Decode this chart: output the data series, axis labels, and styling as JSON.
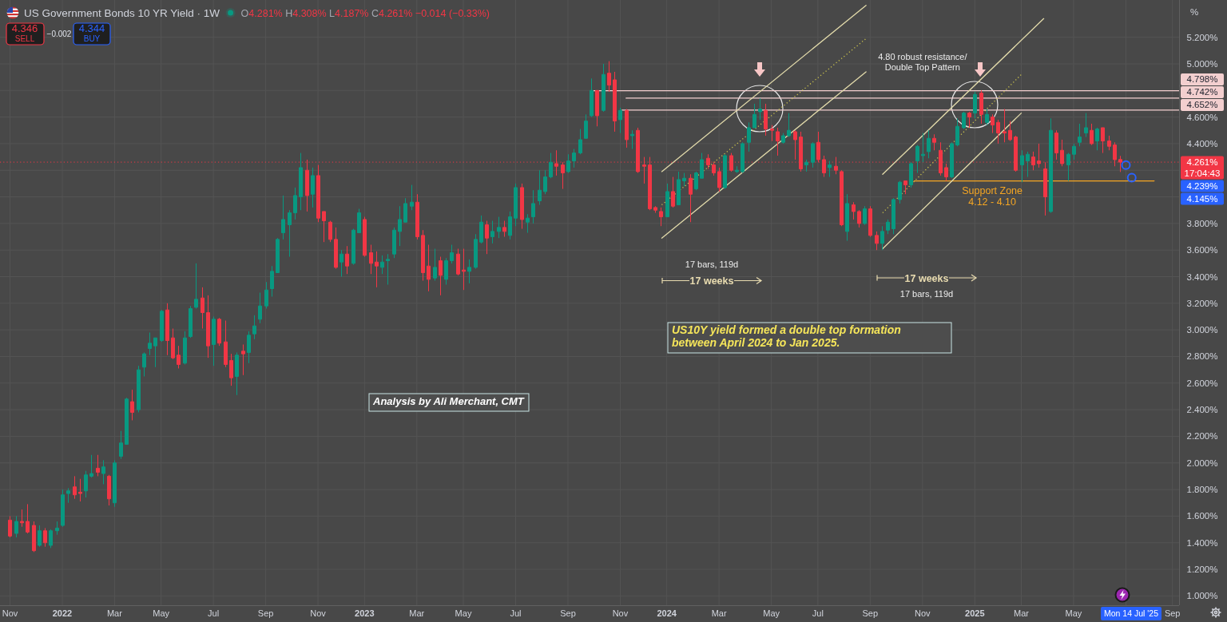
{
  "chart_data": {
    "type": "candlestick",
    "title": "US Government Bonds 10 YR Yield · 1W",
    "subtitle": "O4.281% H4.308% L4.187% C4.261% −0.014 (−0.33%)",
    "ylabel": "%",
    "xlim": [
      "2021-10-20",
      "2025-09-09"
    ],
    "ylim": [
      0.93,
      5.48
    ],
    "xticks": [
      {
        "value": "2021-11-01",
        "label": "Nov"
      },
      {
        "value": "2022-01-03",
        "label": "2022"
      },
      {
        "value": "2022-03-07",
        "label": "Mar"
      },
      {
        "value": "2022-05-02",
        "label": "May"
      },
      {
        "value": "2022-07-04",
        "label": "Jul"
      },
      {
        "value": "2022-09-05",
        "label": "Sep"
      },
      {
        "value": "2022-11-07",
        "label": "Nov"
      },
      {
        "value": "2023-01-02",
        "label": "2023"
      },
      {
        "value": "2023-03-06",
        "label": "Mar"
      },
      {
        "value": "2023-05-01",
        "label": "May"
      },
      {
        "value": "2023-07-03",
        "label": "Jul"
      },
      {
        "value": "2023-09-04",
        "label": "Sep"
      },
      {
        "value": "2023-11-06",
        "label": "Nov"
      },
      {
        "value": "2024-01-01",
        "label": "2024"
      },
      {
        "value": "2024-03-04",
        "label": "Mar"
      },
      {
        "value": "2024-05-06",
        "label": "May"
      },
      {
        "value": "2024-07-01",
        "label": "Jul"
      },
      {
        "value": "2024-09-02",
        "label": "Sep"
      },
      {
        "value": "2024-11-04",
        "label": "Nov"
      },
      {
        "value": "2025-01-06",
        "label": "2025"
      },
      {
        "value": "2025-03-03",
        "label": "Mar"
      },
      {
        "value": "2025-05-05",
        "label": "May"
      },
      {
        "value": "2025-07-07",
        "label": null
      },
      {
        "value": "2025-09-01",
        "label": "Sep"
      }
    ],
    "yticks": [
      {
        "value": 1,
        "label": "1.000%"
      },
      {
        "value": 1.2,
        "label": "1.200%"
      },
      {
        "value": 1.4,
        "label": "1.400%"
      },
      {
        "value": 1.6,
        "label": "1.600%"
      },
      {
        "value": 1.8,
        "label": "1.800%"
      },
      {
        "value": 2,
        "label": "2.000%"
      },
      {
        "value": 2.2,
        "label": "2.200%"
      },
      {
        "value": 2.4,
        "label": "2.400%"
      },
      {
        "value": 2.6,
        "label": "2.600%"
      },
      {
        "value": 2.8,
        "label": "2.800%"
      },
      {
        "value": 3,
        "label": "3.000%"
      },
      {
        "value": 3.2,
        "label": "3.200%"
      },
      {
        "value": 3.4,
        "label": "3.400%"
      },
      {
        "value": 3.6,
        "label": "3.600%"
      },
      {
        "value": 3.8,
        "label": "3.800%"
      },
      {
        "value": 4,
        "label": null
      },
      {
        "value": 4.2,
        "label": null
      },
      {
        "value": 4.4,
        "label": "4.400%"
      },
      {
        "value": 4.6,
        "label": "4.600%"
      },
      {
        "value": 4.8,
        "label": null
      },
      {
        "value": 5,
        "label": "5.000%"
      },
      {
        "value": 5.2,
        "label": "5.200%"
      }
    ],
    "grid": true,
    "x": [
      "2021-11-01",
      "2021-11-08",
      "2021-11-15",
      "2021-11-22",
      "2021-11-29",
      "2021-12-06",
      "2021-12-13",
      "2021-12-20",
      "2021-12-27",
      "2022-01-03",
      "2022-01-10",
      "2022-01-17",
      "2022-01-24",
      "2022-01-31",
      "2022-02-07",
      "2022-02-14",
      "2022-02-21",
      "2022-02-28",
      "2022-03-07",
      "2022-03-14",
      "2022-03-21",
      "2022-03-28",
      "2022-04-04",
      "2022-04-11",
      "2022-04-18",
      "2022-04-25",
      "2022-05-02",
      "2022-05-09",
      "2022-05-16",
      "2022-05-23",
      "2022-05-30",
      "2022-06-06",
      "2022-06-13",
      "2022-06-20",
      "2022-06-27",
      "2022-07-04",
      "2022-07-11",
      "2022-07-18",
      "2022-07-25",
      "2022-08-01",
      "2022-08-08",
      "2022-08-15",
      "2022-08-22",
      "2022-08-29",
      "2022-09-05",
      "2022-09-12",
      "2022-09-19",
      "2022-09-26",
      "2022-10-03",
      "2022-10-10",
      "2022-10-17",
      "2022-10-24",
      "2022-10-31",
      "2022-11-07",
      "2022-11-14",
      "2022-11-21",
      "2022-11-28",
      "2022-12-05",
      "2022-12-12",
      "2022-12-19",
      "2022-12-26",
      "2023-01-02",
      "2023-01-09",
      "2023-01-16",
      "2023-01-23",
      "2023-01-30",
      "2023-02-06",
      "2023-02-13",
      "2023-02-20",
      "2023-02-27",
      "2023-03-06",
      "2023-03-13",
      "2023-03-20",
      "2023-03-27",
      "2023-04-03",
      "2023-04-10",
      "2023-04-17",
      "2023-04-24",
      "2023-05-01",
      "2023-05-08",
      "2023-05-15",
      "2023-05-22",
      "2023-05-29",
      "2023-06-05",
      "2023-06-12",
      "2023-06-19",
      "2023-06-26",
      "2023-07-03",
      "2023-07-10",
      "2023-07-17",
      "2023-07-24",
      "2023-07-31",
      "2023-08-07",
      "2023-08-14",
      "2023-08-21",
      "2023-08-28",
      "2023-09-04",
      "2023-09-11",
      "2023-09-18",
      "2023-09-25",
      "2023-10-02",
      "2023-10-09",
      "2023-10-16",
      "2023-10-23",
      "2023-10-30",
      "2023-11-06",
      "2023-11-13",
      "2023-11-20",
      "2023-11-27",
      "2023-12-04",
      "2023-12-11",
      "2023-12-18",
      "2023-12-25",
      "2024-01-01",
      "2024-01-08",
      "2024-01-15",
      "2024-01-22",
      "2024-01-29",
      "2024-02-05",
      "2024-02-12",
      "2024-02-19",
      "2024-02-26",
      "2024-03-04",
      "2024-03-11",
      "2024-03-18",
      "2024-03-25",
      "2024-04-01",
      "2024-04-08",
      "2024-04-15",
      "2024-04-22",
      "2024-04-29",
      "2024-05-06",
      "2024-05-13",
      "2024-05-20",
      "2024-05-27",
      "2024-06-03",
      "2024-06-10",
      "2024-06-17",
      "2024-06-24",
      "2024-07-01",
      "2024-07-08",
      "2024-07-15",
      "2024-07-22",
      "2024-07-29",
      "2024-08-05",
      "2024-08-12",
      "2024-08-19",
      "2024-08-26",
      "2024-09-02",
      "2024-09-09",
      "2024-09-16",
      "2024-09-23",
      "2024-09-30",
      "2024-10-07",
      "2024-10-14",
      "2024-10-21",
      "2024-10-28",
      "2024-11-04",
      "2024-11-11",
      "2024-11-18",
      "2024-11-25",
      "2024-12-02",
      "2024-12-09",
      "2024-12-16",
      "2024-12-23",
      "2024-12-30",
      "2025-01-06",
      "2025-01-13",
      "2025-01-20",
      "2025-01-27",
      "2025-02-03",
      "2025-02-10",
      "2025-02-17",
      "2025-02-24",
      "2025-03-03",
      "2025-03-10",
      "2025-03-17",
      "2025-03-24",
      "2025-03-31",
      "2025-04-07",
      "2025-04-14",
      "2025-04-21",
      "2025-04-28",
      "2025-05-05",
      "2025-05-12",
      "2025-05-19",
      "2025-05-26",
      "2025-06-02",
      "2025-06-09",
      "2025-06-16",
      "2025-06-23",
      "2025-06-30"
    ],
    "ohlc": [
      [
        1.57,
        1.6,
        1.44,
        1.45
      ],
      [
        1.47,
        1.6,
        1.44,
        1.56
      ],
      [
        1.56,
        1.65,
        1.52,
        1.55
      ],
      [
        1.56,
        1.69,
        1.47,
        1.48
      ],
      [
        1.53,
        1.56,
        1.33,
        1.34
      ],
      [
        1.38,
        1.53,
        1.37,
        1.49
      ],
      [
        1.49,
        1.51,
        1.37,
        1.4
      ],
      [
        1.38,
        1.5,
        1.36,
        1.49
      ],
      [
        1.49,
        1.56,
        1.46,
        1.51
      ],
      [
        1.53,
        1.8,
        1.52,
        1.76
      ],
      [
        1.77,
        1.81,
        1.7,
        1.79
      ],
      [
        1.82,
        1.9,
        1.73,
        1.76
      ],
      [
        1.78,
        1.88,
        1.71,
        1.77
      ],
      [
        1.79,
        1.94,
        1.74,
        1.91
      ],
      [
        1.9,
        2.06,
        1.89,
        1.92
      ],
      [
        1.96,
        2.06,
        1.9,
        1.93
      ],
      [
        1.92,
        2.02,
        1.84,
        1.97
      ],
      [
        1.9,
        1.91,
        1.68,
        1.73
      ],
      [
        1.7,
        2.02,
        1.67,
        2.0
      ],
      [
        2.05,
        2.24,
        2.03,
        2.15
      ],
      [
        2.14,
        2.49,
        2.14,
        2.48
      ],
      [
        2.46,
        2.55,
        2.32,
        2.38
      ],
      [
        2.4,
        2.73,
        2.38,
        2.7
      ],
      [
        2.72,
        2.83,
        2.65,
        2.82
      ],
      [
        2.86,
        2.98,
        2.81,
        2.9
      ],
      [
        2.88,
        2.94,
        2.72,
        2.94
      ],
      [
        2.92,
        3.15,
        2.91,
        3.14
      ],
      [
        3.15,
        3.2,
        2.81,
        2.92
      ],
      [
        2.94,
        3.01,
        2.78,
        2.79
      ],
      [
        2.81,
        2.88,
        2.71,
        2.74
      ],
      [
        2.75,
        2.99,
        2.74,
        2.94
      ],
      [
        2.95,
        3.18,
        2.94,
        3.16
      ],
      [
        3.17,
        3.5,
        3.16,
        3.23
      ],
      [
        3.24,
        3.32,
        3.01,
        3.13
      ],
      [
        3.13,
        3.26,
        2.79,
        2.88
      ],
      [
        2.89,
        3.1,
        2.73,
        3.08
      ],
      [
        3.08,
        3.09,
        2.88,
        2.9
      ],
      [
        2.91,
        3.07,
        2.72,
        2.74
      ],
      [
        2.77,
        2.82,
        2.58,
        2.64
      ],
      [
        2.65,
        2.83,
        2.51,
        2.81
      ],
      [
        2.84,
        2.89,
        2.66,
        2.82
      ],
      [
        2.83,
        2.99,
        2.75,
        2.96
      ],
      [
        2.97,
        3.11,
        2.93,
        3.03
      ],
      [
        3.08,
        3.28,
        3.05,
        3.18
      ],
      [
        3.18,
        3.36,
        3.16,
        3.3
      ],
      [
        3.31,
        3.48,
        3.25,
        3.44
      ],
      [
        3.43,
        3.69,
        3.43,
        3.68
      ],
      [
        3.73,
        4.01,
        3.68,
        3.83
      ],
      [
        3.79,
        3.9,
        3.55,
        3.88
      ],
      [
        3.88,
        4.07,
        3.83,
        4.01
      ],
      [
        4.0,
        4.33,
        3.9,
        4.22
      ],
      [
        4.2,
        4.28,
        3.89,
        4.01
      ],
      [
        4.02,
        4.22,
        3.92,
        4.16
      ],
      [
        4.16,
        4.24,
        3.81,
        3.84
      ],
      [
        3.89,
        3.89,
        3.66,
        3.82
      ],
      [
        3.81,
        3.82,
        3.66,
        3.68
      ],
      [
        3.68,
        3.77,
        3.46,
        3.47
      ],
      [
        3.51,
        3.6,
        3.4,
        3.57
      ],
      [
        3.57,
        3.63,
        3.42,
        3.48
      ],
      [
        3.5,
        3.76,
        3.49,
        3.75
      ],
      [
        3.73,
        3.91,
        3.73,
        3.88
      ],
      [
        3.83,
        3.85,
        3.55,
        3.56
      ],
      [
        3.58,
        3.64,
        3.42,
        3.5
      ],
      [
        3.51,
        3.59,
        3.32,
        3.48
      ],
      [
        3.47,
        3.56,
        3.42,
        3.51
      ],
      [
        3.52,
        3.57,
        3.34,
        3.53
      ],
      [
        3.57,
        3.77,
        3.54,
        3.75
      ],
      [
        3.74,
        3.93,
        3.63,
        3.83
      ],
      [
        3.81,
        3.99,
        3.81,
        3.95
      ],
      [
        3.93,
        4.09,
        3.9,
        3.96
      ],
      [
        3.96,
        4.02,
        3.68,
        3.7
      ],
      [
        3.71,
        3.75,
        3.37,
        3.43
      ],
      [
        3.48,
        3.64,
        3.29,
        3.38
      ],
      [
        3.39,
        3.61,
        3.37,
        3.47
      ],
      [
        3.52,
        3.55,
        3.26,
        3.41
      ],
      [
        3.38,
        3.54,
        3.34,
        3.52
      ],
      [
        3.52,
        3.64,
        3.5,
        3.58
      ],
      [
        3.57,
        3.61,
        3.41,
        3.42
      ],
      [
        3.45,
        3.61,
        3.3,
        3.44
      ],
      [
        3.44,
        3.53,
        3.35,
        3.47
      ],
      [
        3.47,
        3.72,
        3.46,
        3.68
      ],
      [
        3.66,
        3.86,
        3.65,
        3.81
      ],
      [
        3.79,
        3.82,
        3.57,
        3.69
      ],
      [
        3.7,
        3.82,
        3.65,
        3.74
      ],
      [
        3.74,
        3.85,
        3.69,
        3.77
      ],
      [
        3.77,
        3.82,
        3.7,
        3.74
      ],
      [
        3.71,
        3.89,
        3.68,
        3.85
      ],
      [
        3.84,
        4.1,
        3.78,
        4.07
      ],
      [
        4.07,
        4.1,
        3.76,
        3.83
      ],
      [
        3.81,
        3.87,
        3.73,
        3.84
      ],
      [
        3.85,
        4.05,
        3.8,
        3.95
      ],
      [
        3.97,
        4.2,
        3.94,
        4.05
      ],
      [
        4.04,
        4.2,
        4.02,
        4.15
      ],
      [
        4.15,
        4.33,
        4.14,
        4.26
      ],
      [
        4.25,
        4.35,
        4.16,
        4.23
      ],
      [
        4.24,
        4.26,
        4.06,
        4.18
      ],
      [
        4.19,
        4.32,
        4.18,
        4.27
      ],
      [
        4.27,
        4.36,
        4.22,
        4.33
      ],
      [
        4.33,
        4.51,
        4.32,
        4.43
      ],
      [
        4.44,
        4.62,
        4.44,
        4.57
      ],
      [
        4.61,
        4.89,
        4.6,
        4.8
      ],
      [
        4.8,
        4.8,
        4.53,
        4.61
      ],
      [
        4.65,
        5.0,
        4.64,
        4.92
      ],
      [
        4.93,
        5.02,
        4.79,
        4.84
      ],
      [
        4.88,
        4.94,
        4.49,
        4.57
      ],
      [
        4.58,
        4.67,
        4.48,
        4.65
      ],
      [
        4.65,
        4.66,
        4.37,
        4.43
      ],
      [
        4.46,
        4.5,
        4.36,
        4.47
      ],
      [
        4.5,
        4.52,
        4.18,
        4.19
      ],
      [
        4.24,
        4.3,
        4.1,
        4.23
      ],
      [
        4.24,
        4.3,
        3.9,
        3.91
      ],
      [
        3.92,
        3.93,
        3.88,
        3.9
      ],
      [
        3.89,
        3.92,
        3.78,
        3.85
      ],
      [
        3.85,
        4.1,
        3.85,
        4.04
      ],
      [
        4.04,
        4.15,
        3.92,
        3.93
      ],
      [
        3.94,
        4.19,
        3.94,
        4.13
      ],
      [
        4.12,
        4.18,
        4.08,
        4.14
      ],
      [
        4.14,
        4.17,
        3.81,
        4.02
      ],
      [
        4.06,
        4.19,
        4.05,
        4.18
      ],
      [
        4.14,
        4.33,
        4.14,
        4.28
      ],
      [
        4.29,
        4.32,
        4.21,
        4.24
      ],
      [
        4.24,
        4.26,
        4.16,
        4.18
      ],
      [
        4.19,
        4.22,
        4.04,
        4.07
      ],
      [
        4.07,
        4.32,
        4.06,
        4.31
      ],
      [
        4.31,
        4.33,
        4.19,
        4.2
      ],
      [
        4.19,
        4.23,
        4.18,
        4.2
      ],
      [
        4.19,
        4.41,
        4.18,
        4.4
      ],
      [
        4.41,
        4.56,
        4.34,
        4.52
      ],
      [
        4.52,
        4.7,
        4.52,
        4.62
      ],
      [
        4.64,
        4.74,
        4.58,
        4.66
      ],
      [
        4.65,
        4.7,
        4.46,
        4.51
      ],
      [
        4.51,
        4.54,
        4.42,
        4.5
      ],
      [
        4.49,
        4.52,
        4.31,
        4.42
      ],
      [
        4.41,
        4.48,
        4.4,
        4.46
      ],
      [
        4.46,
        4.63,
        4.45,
        4.5
      ],
      [
        4.49,
        4.5,
        4.28,
        4.43
      ],
      [
        4.45,
        4.49,
        4.19,
        4.21
      ],
      [
        4.24,
        4.28,
        4.19,
        4.26
      ],
      [
        4.26,
        4.41,
        4.22,
        4.4
      ],
      [
        4.41,
        4.49,
        4.26,
        4.28
      ],
      [
        4.28,
        4.31,
        4.15,
        4.18
      ],
      [
        4.22,
        4.27,
        4.15,
        4.24
      ],
      [
        4.23,
        4.3,
        4.17,
        4.2
      ],
      [
        4.19,
        4.2,
        3.78,
        3.79
      ],
      [
        3.74,
        4.02,
        3.67,
        3.95
      ],
      [
        3.94,
        3.96,
        3.83,
        3.89
      ],
      [
        3.89,
        3.9,
        3.77,
        3.8
      ],
      [
        3.8,
        3.93,
        3.79,
        3.91
      ],
      [
        3.91,
        3.93,
        3.7,
        3.71
      ],
      [
        3.71,
        3.74,
        3.6,
        3.65
      ],
      [
        3.65,
        3.78,
        3.6,
        3.74
      ],
      [
        3.75,
        3.83,
        3.72,
        3.81
      ],
      [
        3.76,
        3.99,
        3.72,
        3.98
      ],
      [
        3.98,
        4.12,
        3.95,
        4.11
      ],
      [
        4.12,
        4.12,
        4.02,
        4.09
      ],
      [
        4.09,
        4.26,
        4.07,
        4.25
      ],
      [
        4.27,
        4.39,
        4.18,
        4.38
      ],
      [
        4.31,
        4.48,
        4.26,
        4.32
      ],
      [
        4.34,
        4.5,
        4.29,
        4.44
      ],
      [
        4.44,
        4.47,
        4.35,
        4.41
      ],
      [
        4.35,
        4.41,
        4.16,
        4.18
      ],
      [
        4.22,
        4.25,
        4.12,
        4.15
      ],
      [
        4.15,
        4.41,
        4.14,
        4.4
      ],
      [
        4.39,
        4.59,
        4.38,
        4.53
      ],
      [
        4.52,
        4.64,
        4.51,
        4.63
      ],
      [
        4.63,
        4.64,
        4.52,
        4.6
      ],
      [
        4.63,
        4.79,
        4.59,
        4.77
      ],
      [
        4.78,
        4.8,
        4.55,
        4.62
      ],
      [
        4.56,
        4.66,
        4.54,
        4.62
      ],
      [
        4.6,
        4.62,
        4.48,
        4.54
      ],
      [
        4.56,
        4.58,
        4.4,
        4.48
      ],
      [
        4.49,
        4.66,
        4.41,
        4.48
      ],
      [
        4.5,
        4.57,
        4.42,
        4.43
      ],
      [
        4.45,
        4.46,
        4.19,
        4.2
      ],
      [
        4.24,
        4.35,
        4.11,
        4.31
      ],
      [
        4.27,
        4.34,
        4.15,
        4.32
      ],
      [
        4.3,
        4.34,
        4.2,
        4.24
      ],
      [
        4.27,
        4.4,
        4.22,
        4.25
      ],
      [
        4.21,
        4.26,
        3.86,
        4.0
      ],
      [
        3.89,
        4.59,
        3.88,
        4.5
      ],
      [
        4.48,
        4.5,
        4.28,
        4.33
      ],
      [
        4.35,
        4.43,
        4.23,
        4.25
      ],
      [
        4.24,
        4.33,
        4.12,
        4.32
      ],
      [
        4.32,
        4.4,
        4.28,
        4.38
      ],
      [
        4.41,
        4.55,
        4.38,
        4.45
      ],
      [
        4.48,
        4.63,
        4.45,
        4.52
      ],
      [
        4.5,
        4.55,
        4.39,
        4.4
      ],
      [
        4.42,
        4.52,
        4.35,
        4.51
      ],
      [
        4.52,
        4.52,
        4.33,
        4.42
      ],
      [
        4.42,
        4.46,
        4.35,
        4.38
      ],
      [
        4.39,
        4.41,
        4.23,
        4.28
      ],
      [
        4.281,
        4.308,
        4.187,
        4.261
      ]
    ],
    "colors": [
      "#f23645",
      "#089981",
      "#f23645",
      "#f23645",
      "#f23645",
      "#089981",
      "#f23645",
      "#089981",
      "#089981",
      "#089981",
      "#089981",
      "#f23645",
      "#f23645",
      "#089981",
      "#089981",
      "#f23645",
      "#089981",
      "#f23645",
      "#089981",
      "#089981",
      "#089981",
      "#f23645",
      "#089981",
      "#089981",
      "#089981",
      "#089981",
      "#089981",
      "#f23645",
      "#f23645",
      "#f23645",
      "#089981",
      "#089981",
      "#089981",
      "#f23645",
      "#f23645",
      "#089981",
      "#f23645",
      "#f23645",
      "#f23645",
      "#089981",
      "#f23645",
      "#089981",
      "#089981",
      "#089981",
      "#089981",
      "#089981",
      "#089981",
      "#089981",
      "#089981",
      "#089981",
      "#089981",
      "#f23645",
      "#089981",
      "#f23645",
      "#f23645",
      "#f23645",
      "#f23645",
      "#089981",
      "#f23645",
      "#089981",
      "#089981",
      "#f23645",
      "#f23645",
      "#f23645",
      "#089981",
      "#089981",
      "#089981",
      "#089981",
      "#089981",
      "#089981",
      "#f23645",
      "#f23645",
      "#f23645",
      "#089981",
      "#f23645",
      "#089981",
      "#089981",
      "#f23645",
      "#f23645",
      "#089981",
      "#089981",
      "#089981",
      "#f23645",
      "#089981",
      "#089981",
      "#f23645",
      "#089981",
      "#089981",
      "#f23645",
      "#089981",
      "#089981",
      "#089981",
      "#089981",
      "#089981",
      "#f23645",
      "#f23645",
      "#089981",
      "#089981",
      "#089981",
      "#089981",
      "#089981",
      "#f23645",
      "#089981",
      "#f23645",
      "#f23645",
      "#089981",
      "#f23645",
      "#089981",
      "#f23645",
      "#f23645",
      "#f23645",
      "#f23645",
      "#f23645",
      "#089981",
      "#f23645",
      "#089981",
      "#089981",
      "#f23645",
      "#089981",
      "#089981",
      "#f23645",
      "#f23645",
      "#f23645",
      "#089981",
      "#f23645",
      "#089981",
      "#089981",
      "#089981",
      "#089981",
      "#089981",
      "#f23645",
      "#f23645",
      "#f23645",
      "#089981",
      "#089981",
      "#f23645",
      "#f23645",
      "#089981",
      "#089981",
      "#f23645",
      "#f23645",
      "#089981",
      "#f23645",
      "#f23645",
      "#089981",
      "#f23645",
      "#f23645",
      "#089981",
      "#f23645",
      "#f23645",
      "#089981",
      "#089981",
      "#089981",
      "#089981",
      "#f23645",
      "#089981",
      "#089981",
      "#089981",
      "#089981",
      "#f23645",
      "#f23645",
      "#f23645",
      "#089981",
      "#089981",
      "#089981",
      "#f23645",
      "#089981",
      "#f23645",
      "#089981",
      "#f23645",
      "#f23645",
      "#f23645",
      "#f23645",
      "#f23645",
      "#089981",
      "#089981",
      "#f23645",
      "#f23645",
      "#f23645",
      "#089981",
      "#f23645",
      "#f23645",
      "#089981",
      "#089981",
      "#089981",
      "#089981",
      "#f23645",
      "#089981",
      "#f23645",
      "#f23645",
      "#f23645",
      "#f23645"
    ],
    "series": [
      {
        "type": "line",
        "x": [
          "2023-10-05",
          "2025-09-09"
        ],
        "values": [
          4.798,
          4.798
        ],
        "color": "#f3cfcf",
        "value_labels": [
          null,
          "4.798%"
        ]
      },
      {
        "type": "line",
        "x": [
          "2023-11-13",
          "2025-09-09"
        ],
        "values": [
          4.742,
          4.742
        ],
        "color": "#f3cfcf",
        "value_labels": [
          null,
          "4.742%"
        ]
      },
      {
        "type": "line",
        "x": [
          "2023-11-08",
          "2025-09-09"
        ],
        "values": [
          4.652,
          4.652
        ],
        "color": "#f3cfcf",
        "value_labels": [
          null,
          "4.652%"
        ]
      },
      {
        "type": "line",
        "x": [
          "2024-10-25",
          "2025-08-10"
        ],
        "values": [
          4.12,
          4.12
        ],
        "color": "#f5a623"
      },
      {
        "type": "line",
        "x": [
          "2023-12-26",
          "2024-08-28"
        ],
        "values": [
          4.19,
          5.44
        ],
        "color": "#e3dbab"
      },
      {
        "type": "line",
        "x": [
          "2023-12-26",
          "2024-08-28"
        ],
        "values": [
          3.94,
          5.19
        ],
        "color": "#cfc64e",
        "line_style": "dotted"
      },
      {
        "type": "line",
        "x": [
          "2023-12-26",
          "2024-08-28"
        ],
        "values": [
          3.69,
          4.94
        ],
        "color": "#e3dbab"
      },
      {
        "type": "line",
        "x": [
          "2024-09-17",
          "2025-03-30"
        ],
        "values": [
          4.17,
          5.34
        ],
        "color": "#e3dbab"
      },
      {
        "type": "line",
        "x": [
          "2024-09-17",
          "2025-03-03"
        ],
        "values": [
          3.88,
          4.92
        ],
        "color": "#cfc64e",
        "line_style": "dotted"
      },
      {
        "type": "line",
        "x": [
          "2024-09-17",
          "2025-03-03"
        ],
        "values": [
          3.61,
          4.63
        ],
        "color": "#e3dbab"
      },
      {
        "type": "scatter",
        "x": [
          "2025-07-07",
          "2025-07-14"
        ],
        "values": [
          4.239,
          4.145
        ],
        "color": "#2962ff",
        "marker": "circle"
      }
    ],
    "ref_lines": [
      {
        "axis": "y",
        "value": 4.261,
        "label": "4.261%",
        "color": "#f23645",
        "line_style": "dotted"
      }
    ],
    "annotations": [
      "4.346",
      "SELL",
      "−0.002",
      "4.344",
      "BUY",
      {
        "text": "4.80 robust resistance/ Double Top Pattern",
        "x": "2024-11-04",
        "y": 4.798
      },
      "17 bars, 119d",
      "17 weeks",
      "17 weeks",
      "17 bars, 119d",
      {
        "text": "Support Zone 4.12 - 4.10",
        "x": "2025-01-27",
        "y": 4.12
      },
      "US10Y yield formed a double top formation between April 2024 to Jan 2025.",
      "Analysis by Ali Merchant, CMT",
      "17:04:43",
      "4.239%",
      "4.145%",
      "Mon 14 Jul '25"
    ]
  }
}
